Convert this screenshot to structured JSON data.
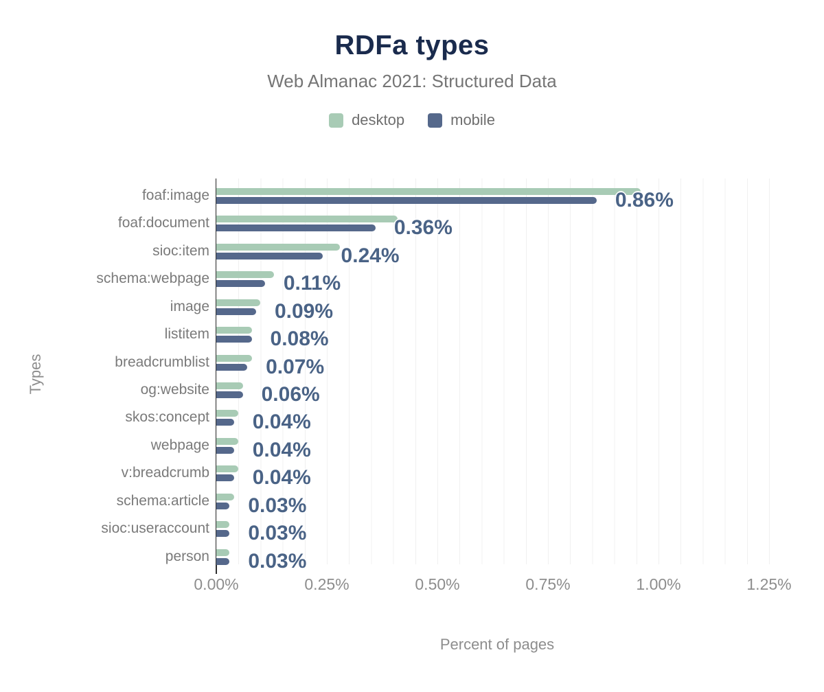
{
  "header": {
    "title": "RDFa types",
    "subtitle": "Web Almanac 2021: Structured Data"
  },
  "legend": [
    {
      "label": "desktop",
      "color": "#a8cbb5"
    },
    {
      "label": "mobile",
      "color": "#55688b"
    }
  ],
  "axes": {
    "x_label": "Percent of pages",
    "y_label": "Types",
    "x_ticks": [
      "0.00%",
      "0.25%",
      "0.50%",
      "0.75%",
      "1.00%",
      "1.25%"
    ]
  },
  "colors": {
    "title": "#1a2b4d",
    "subtitle_gray": "#757575",
    "desktop_bar": "#a8cbb5",
    "mobile_bar": "#55688b",
    "value_label": "#4a6386",
    "axis_line": "#2e2e2e",
    "gridline": "#f0f0f0"
  },
  "chart_data": {
    "type": "bar",
    "orientation": "horizontal",
    "title": "RDFa types",
    "subtitle": "Web Almanac 2021: Structured Data",
    "xlabel": "Percent of pages",
    "ylabel": "Types",
    "xlim": [
      0,
      1.25
    ],
    "x_tick_step": 0.25,
    "grid": "minor vertical gridlines every 0.05%",
    "legend_position": "top center",
    "categories": [
      "foaf:image",
      "foaf:document",
      "sioc:item",
      "schema:webpage",
      "image",
      "listitem",
      "breadcrumblist",
      "og:website",
      "skos:concept",
      "webpage",
      "v:breadcrumb",
      "schema:article",
      "sioc:useraccount",
      "person"
    ],
    "series": [
      {
        "name": "desktop",
        "values": [
          0.96,
          0.41,
          0.28,
          0.13,
          0.1,
          0.08,
          0.08,
          0.06,
          0.05,
          0.05,
          0.05,
          0.04,
          0.03,
          0.03
        ]
      },
      {
        "name": "mobile",
        "values": [
          0.86,
          0.36,
          0.24,
          0.11,
          0.09,
          0.08,
          0.07,
          0.06,
          0.04,
          0.04,
          0.04,
          0.03,
          0.03,
          0.03
        ]
      }
    ],
    "value_labels": [
      "0.86%",
      "0.36%",
      "0.24%",
      "0.11%",
      "0.09%",
      "0.08%",
      "0.07%",
      "0.06%",
      "0.04%",
      "0.04%",
      "0.04%",
      "0.03%",
      "0.03%",
      "0.03%"
    ],
    "value_labels_series": "mobile",
    "units": "percent"
  }
}
